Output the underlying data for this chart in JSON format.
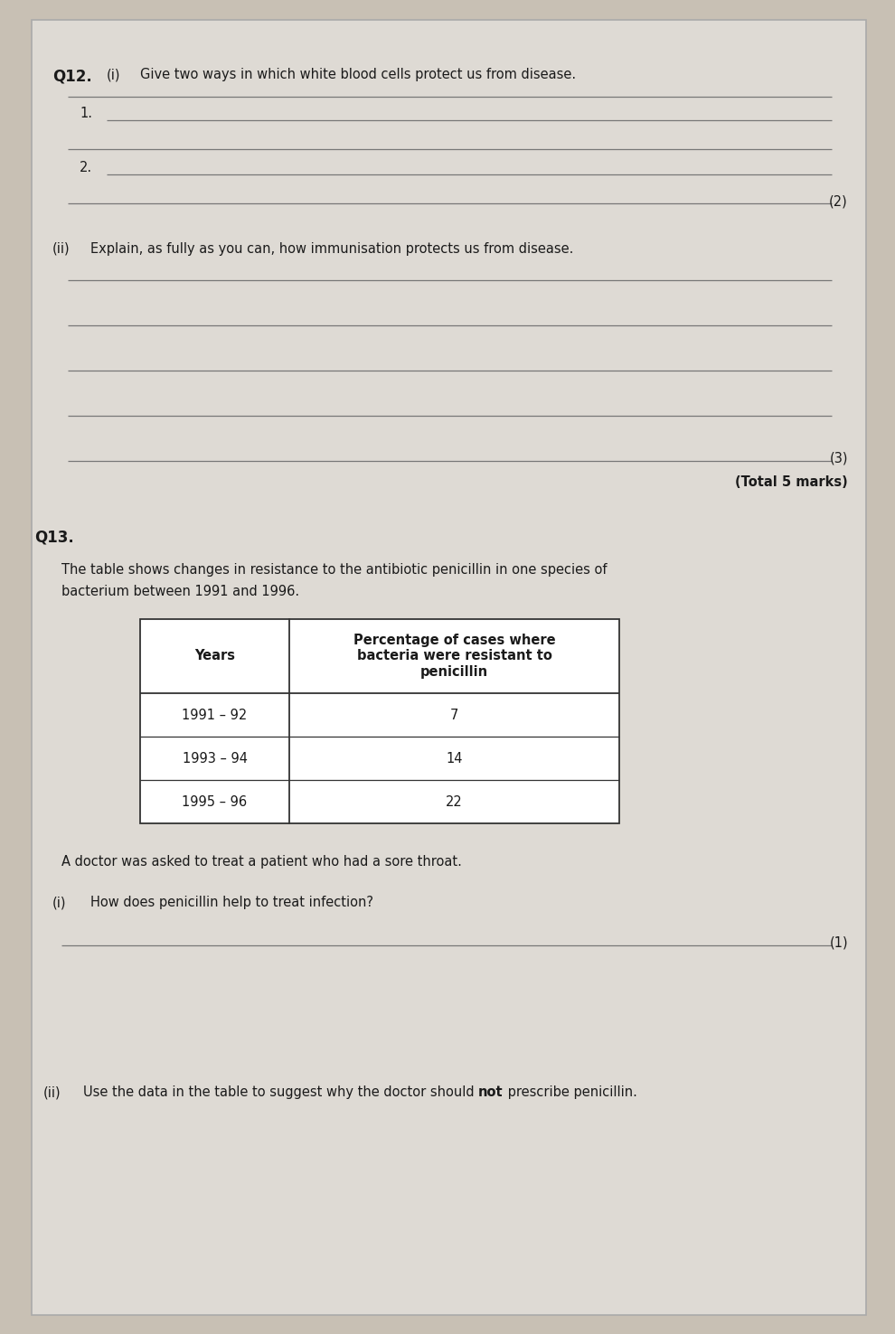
{
  "bg_color": "#c8c0b4",
  "paper_color": "#dedad4",
  "q12_label": "Q12.",
  "q12i_label": "(i)",
  "q12i_text": "Give two ways in which white blood cells protect us from disease.",
  "q12i_mark": "(2)",
  "q12ii_label": "(ii)",
  "q12ii_text": "Explain, as fully as you can, how immunisation protects us from disease.",
  "q12ii_mark": "(3)",
  "total_marks": "(Total 5 marks)",
  "q13_label": "Q13.",
  "q13_intro_line1": "The table shows changes in resistance to the antibiotic penicillin in one species of",
  "q13_intro_line2": "bacterium between 1991 and 1996.",
  "table_col1_header": "Years",
  "table_col2_header": "Percentage of cases where\nbacteria were resistant to\npenicillin",
  "table_rows": [
    [
      "1991 – 92",
      "7"
    ],
    [
      "1993 – 94",
      "14"
    ],
    [
      "1995 – 96",
      "22"
    ]
  ],
  "doctor_text": "A doctor was asked to treat a patient who had a sore throat.",
  "q13i_label": "(i)",
  "q13i_text": "How does penicillin help to treat infection?",
  "q13i_mark": "(1)",
  "q13ii_label": "(ii)",
  "q13ii_pre": "Use the data in the table to suggest why the doctor should ",
  "q13ii_bold": "not",
  "q13ii_post": " prescribe penicillin."
}
